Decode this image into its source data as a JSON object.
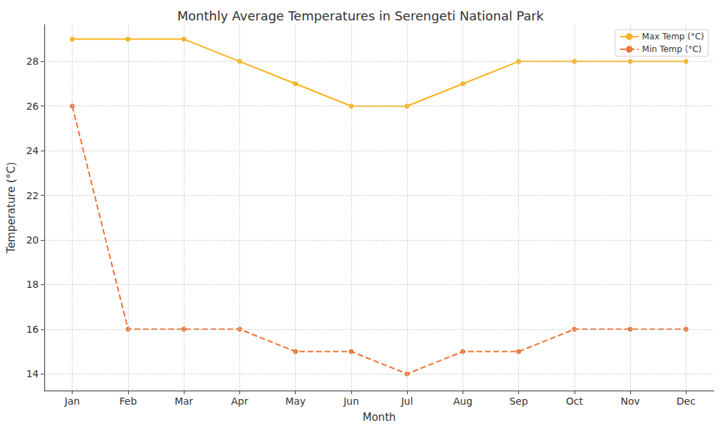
{
  "chart_data": {
    "type": "line",
    "title": "Monthly Average Temperatures in Serengeti National Park",
    "x_label": "Month",
    "y_label": "Temperature (°C)",
    "categories": [
      "Jan",
      "Feb",
      "Mar",
      "Apr",
      "May",
      "Jun",
      "Jul",
      "Aug",
      "Sep",
      "Oct",
      "Nov",
      "Dec"
    ],
    "series": [
      {
        "name": "Max Temp (°C)",
        "color": "#fbb117",
        "marker": "circle",
        "line_style": "solid",
        "values": [
          29,
          29,
          29,
          28,
          27,
          26,
          26,
          27,
          28,
          28,
          28,
          28
        ]
      },
      {
        "name": "Min Temp (°C)",
        "color": "#f07030",
        "marker": "circle",
        "line_style": "dashed",
        "values": [
          26,
          16,
          16,
          16,
          15,
          15,
          14,
          15,
          15,
          16,
          16,
          16
        ]
      }
    ],
    "ylim": [
      13.25,
      29.65
    ],
    "yticks": [
      14,
      16,
      18,
      20,
      22,
      24,
      26,
      28
    ],
    "grid": true,
    "legend": "upper right"
  }
}
